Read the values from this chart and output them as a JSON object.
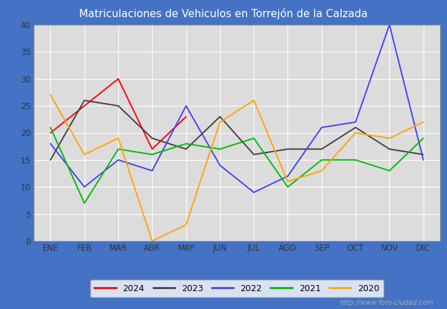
{
  "title": "Matriculaciones de Vehiculos en Torrejón de la Calzada",
  "title_color": "#ffffff",
  "header_bg": "#4472c4",
  "plot_bg": "#dcdcdc",
  "months": [
    "ENE",
    "FEB",
    "MAR",
    "ABR",
    "MAY",
    "JUN",
    "JUL",
    "AGO",
    "SEP",
    "OCT",
    "NOV",
    "DIC"
  ],
  "series": {
    "2024": {
      "color": "#ff0000",
      "data": [
        20,
        25,
        30,
        17,
        23,
        null,
        null,
        null,
        null,
        null,
        null,
        null
      ]
    },
    "2023": {
      "color": "#404040",
      "data": [
        15,
        26,
        25,
        19,
        17,
        23,
        16,
        17,
        17,
        21,
        17,
        16
      ]
    },
    "2022": {
      "color": "#4040ff",
      "data": [
        18,
        10,
        15,
        13,
        25,
        14,
        9,
        12,
        21,
        22,
        40,
        15
      ]
    },
    "2021": {
      "color": "#00bb00",
      "data": [
        21,
        7,
        17,
        16,
        18,
        17,
        19,
        10,
        15,
        15,
        13,
        19
      ]
    },
    "2020": {
      "color": "#ffa500",
      "data": [
        27,
        16,
        19,
        0,
        3,
        22,
        26,
        11,
        13,
        20,
        19,
        22
      ]
    }
  },
  "ylim": [
    0,
    40
  ],
  "yticks": [
    0,
    5,
    10,
    15,
    20,
    25,
    30,
    35,
    40
  ],
  "grid_color": "#ffffff",
  "watermark": "http://www.foro-ciudad.com",
  "legend_years": [
    "2024",
    "2023",
    "2022",
    "2021",
    "2020"
  ]
}
